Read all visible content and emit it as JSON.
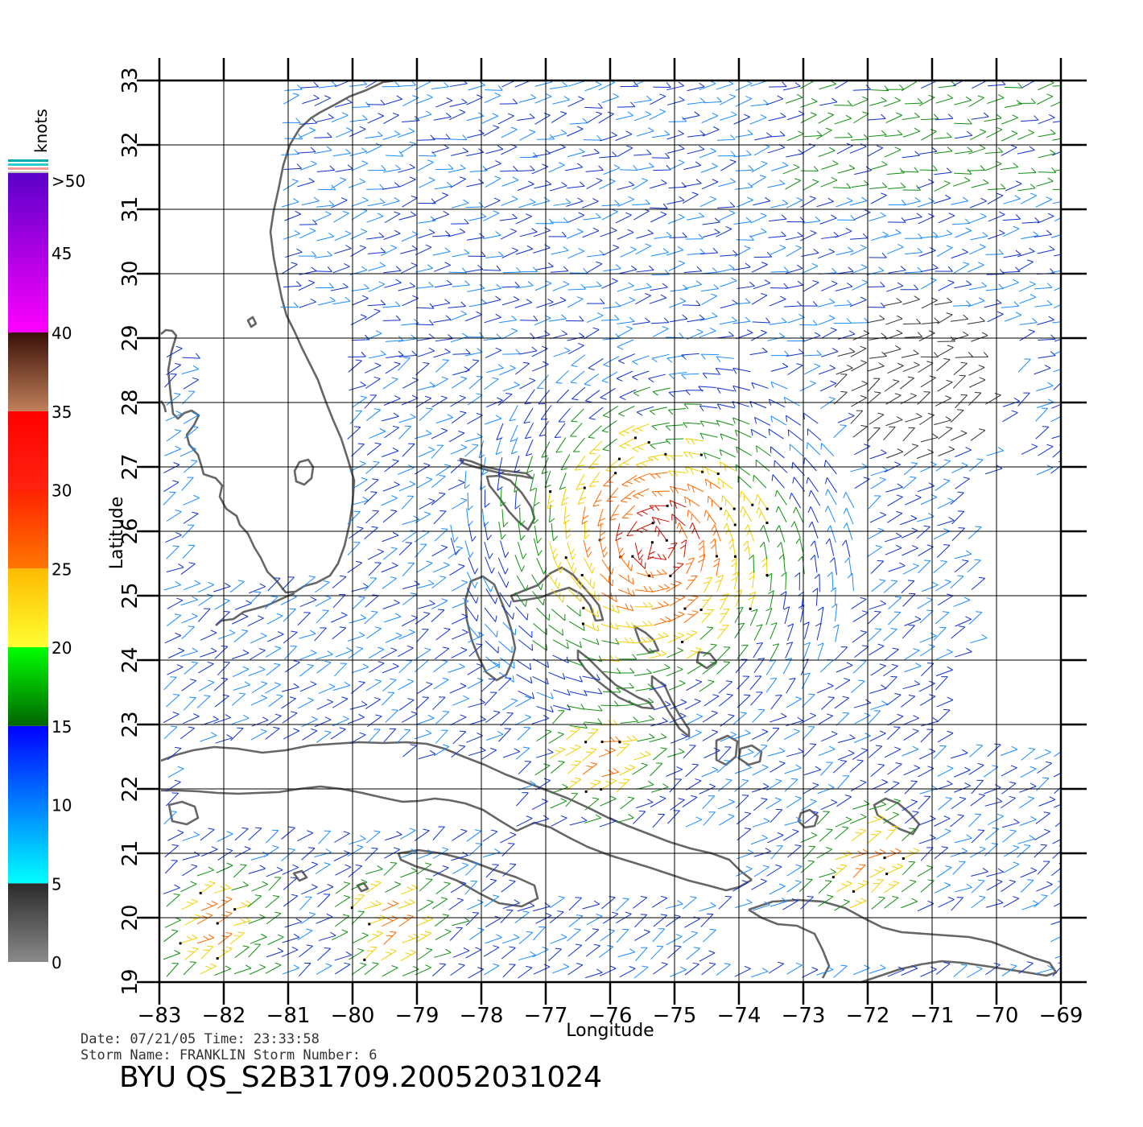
{
  "map": {
    "x_axis_label": "Longitude",
    "y_axis_label": "Latitude",
    "lon_ticks": [
      "−83",
      "−82",
      "−81",
      "−80",
      "−79",
      "−78",
      "−77",
      "−76",
      "−75",
      "−74",
      "−73",
      "−72",
      "−71",
      "−70",
      "−69"
    ],
    "lat_ticks": [
      "19",
      "20",
      "21",
      "22",
      "23",
      "24",
      "25",
      "26",
      "27",
      "28",
      "29",
      "30",
      "31",
      "32",
      "33"
    ],
    "lon_range": [
      -83,
      -69
    ],
    "lat_range": [
      19,
      33
    ],
    "coastline_color": "#666666",
    "gridline_color": "#000000"
  },
  "legend": {
    "unit": "knots",
    "labels": [
      ">50",
      "45",
      "40",
      "35",
      "30",
      "25",
      "20",
      "15",
      "10",
      "5",
      "0"
    ],
    "bands": [
      {
        "range": [
          0,
          5
        ],
        "colors": [
          "#8a8a8a",
          "#2a2a2a"
        ]
      },
      {
        "range": [
          5,
          15
        ],
        "colors": [
          "#00ffff",
          "#0000ff"
        ]
      },
      {
        "range": [
          15,
          20
        ],
        "colors": [
          "#006400",
          "#00ff00"
        ]
      },
      {
        "range": [
          20,
          25
        ],
        "colors": [
          "#ffff33",
          "#ffbb00"
        ]
      },
      {
        "range": [
          25,
          30
        ],
        "colors": [
          "#ff7700",
          "#ff2200"
        ]
      },
      {
        "range": [
          30,
          35
        ],
        "colors": [
          "#ff2211",
          "#ff0000"
        ]
      },
      {
        "range": [
          35,
          40
        ],
        "colors": [
          "#c0805a",
          "#3a1008"
        ]
      },
      {
        "range": [
          40,
          50
        ],
        "colors": [
          "#ff00ff",
          "#5a00c8"
        ]
      }
    ]
  },
  "info": {
    "date_line": "Date: 07/21/05   Time: 23:33:58",
    "storm_line": "Storm  Name:  FRANKLIN    Storm  Number:  6",
    "product_id": "BYU  QS_S2B31709.20052031024"
  },
  "wind_field": {
    "storm_center": [
      -75.3,
      25.8
    ],
    "secondary_wind_areas": [
      [
        -76.2,
        22.4
      ],
      [
        -82.2,
        19.8
      ],
      [
        -79.5,
        19.8
      ],
      [
        -72.1,
        20.8
      ]
    ],
    "light_wind_area": [
      -71.3,
      28.3
    ]
  }
}
